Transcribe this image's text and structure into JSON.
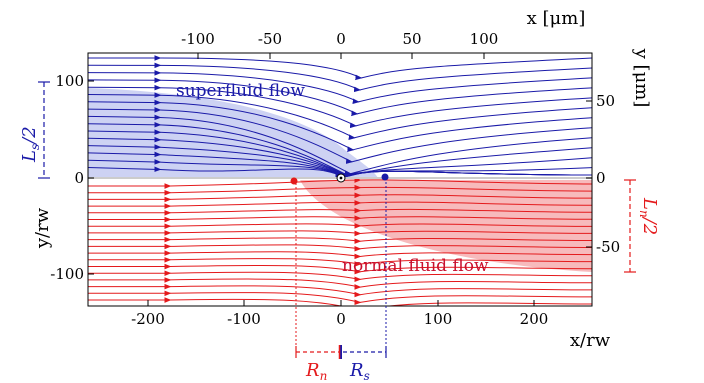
{
  "axes": {
    "bottom_title": "x/rw",
    "left_title": "y/rw",
    "top_title": "x [μm]",
    "right_title": "y [μm]",
    "bottom_ticks": [
      "-200",
      "-100",
      "0",
      "100",
      "200"
    ],
    "left_ticks": [
      "100",
      "0",
      "-100"
    ],
    "top_ticks": [
      "-100",
      "-50",
      "0",
      "50",
      "100"
    ],
    "right_ticks": [
      "50",
      "0",
      "-50"
    ]
  },
  "labels": {
    "superfluid": "superfluid flow",
    "normal": "normal fluid flow"
  },
  "dimensions": {
    "ls_main": "L",
    "ls_sub": "s",
    "ls_tail": "/2",
    "ln_main": "L",
    "ln_sub": "n",
    "ln_tail": "/2",
    "rn_main": "R",
    "rn_sub": "n",
    "rs_main": "R",
    "rs_sub": "s"
  },
  "colors": {
    "superfluid": "#1a1aa8",
    "superfluid_fill": "#c8cdf2",
    "normal": "#e41a1c",
    "normal_fill": "#f6aeb0"
  }
}
